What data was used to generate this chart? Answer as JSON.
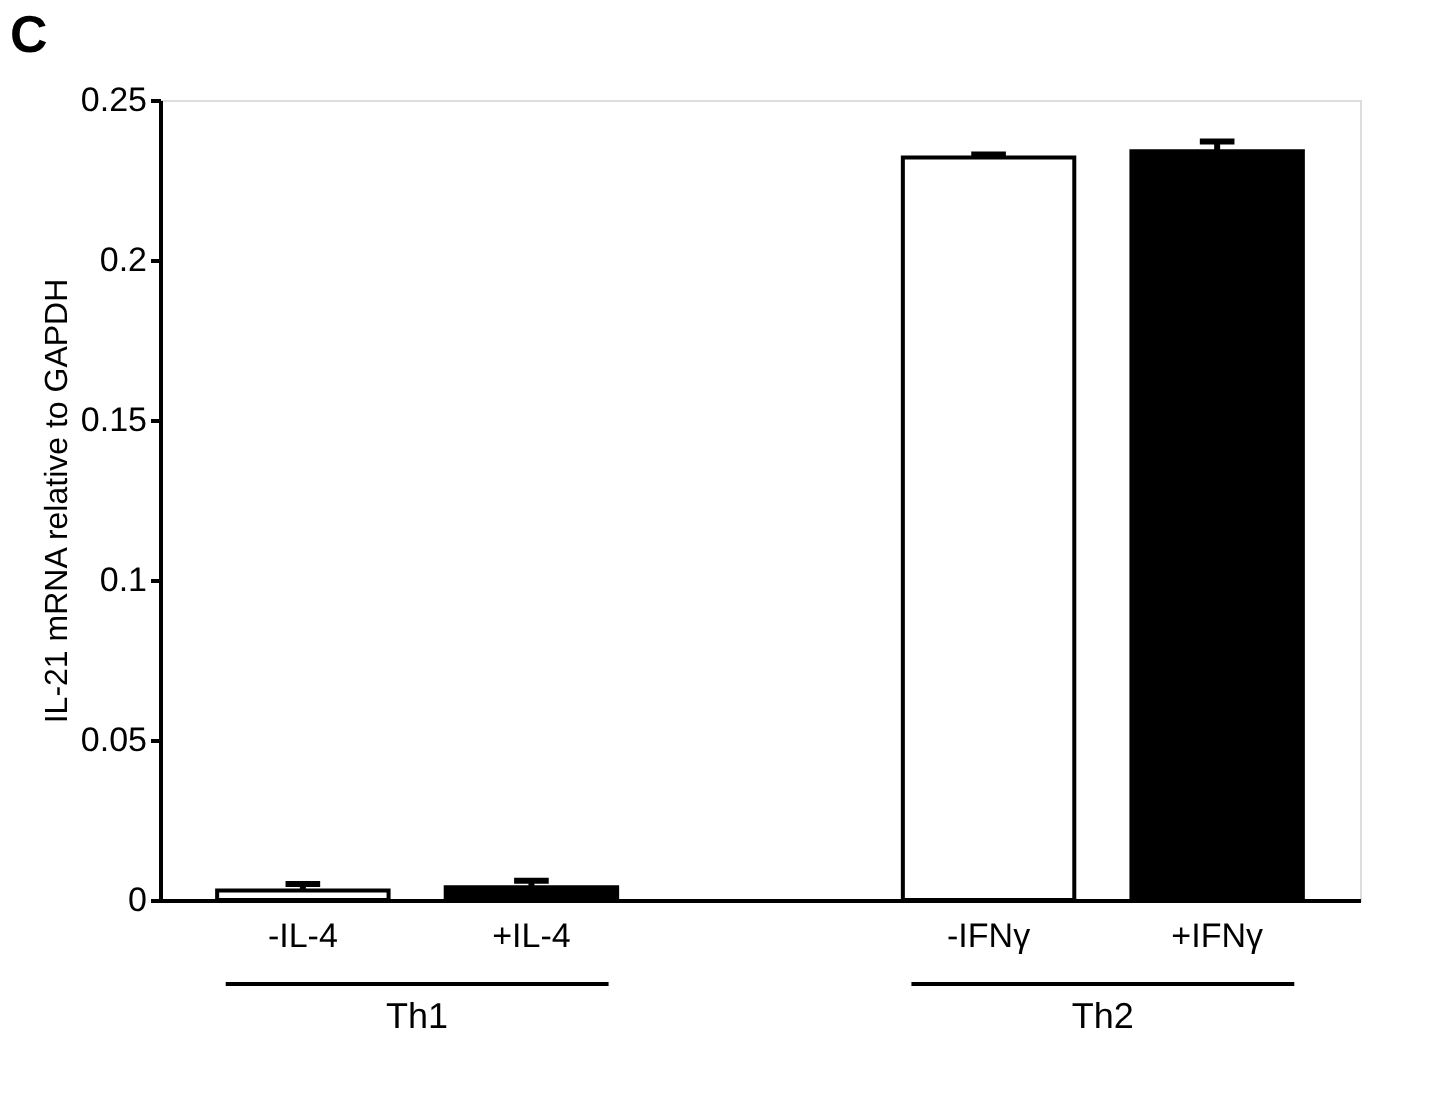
{
  "chart_data": {
    "type": "bar",
    "title": "C",
    "ylabel": "IL-21 mRNA relative to GAPDH",
    "categories": [
      "-IL-4",
      "+IL-4",
      null,
      "-IFNγ",
      "+IFNγ"
    ],
    "values": [
      0.003,
      0.004,
      null,
      0.232,
      0.234
    ],
    "colors": [
      "#ffffff",
      "#000000",
      "#ffffff",
      "#ffffff",
      "#000000"
    ],
    "errors": [
      [
        0.003,
        0.005
      ],
      [
        0.004,
        0.006
      ],
      null,
      [
        0.232,
        0.233
      ],
      [
        0.234,
        0.237
      ]
    ],
    "ylim": [
      0,
      0.25
    ],
    "yticks": [
      0,
      0.05,
      0.1,
      0.15,
      0.2,
      0.25
    ],
    "annotations": [
      "Th1",
      "Th2"
    ]
  }
}
